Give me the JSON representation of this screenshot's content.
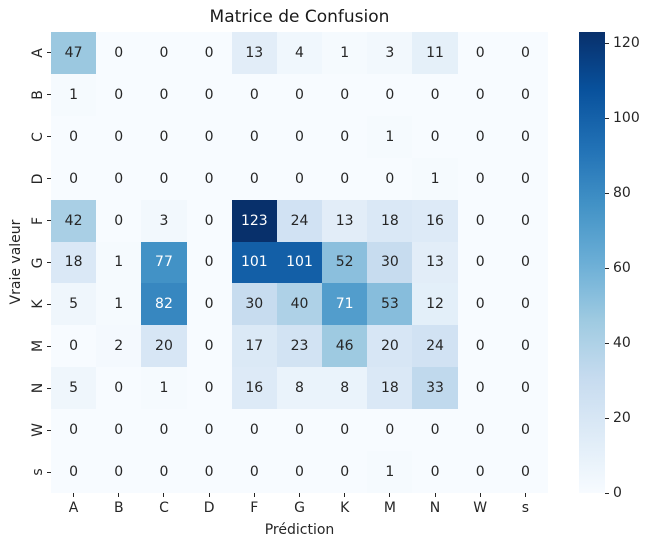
{
  "title": "Matrice de Confusion",
  "chart_data": {
    "type": "heatmap",
    "title": "Matrice de Confusion",
    "xlabel": "Prédiction",
    "ylabel": "Vraie valeur",
    "x_labels": [
      "A",
      "B",
      "C",
      "D",
      "F",
      "G",
      "K",
      "M",
      "N",
      "W",
      "s"
    ],
    "y_labels": [
      "A",
      "B",
      "C",
      "D",
      "F",
      "G",
      "K",
      "M",
      "N",
      "W",
      "s"
    ],
    "matrix": [
      [
        47,
        0,
        0,
        0,
        13,
        4,
        1,
        3,
        11,
        0,
        0
      ],
      [
        1,
        0,
        0,
        0,
        0,
        0,
        0,
        0,
        0,
        0,
        0
      ],
      [
        0,
        0,
        0,
        0,
        0,
        0,
        0,
        1,
        0,
        0,
        0
      ],
      [
        0,
        0,
        0,
        0,
        0,
        0,
        0,
        0,
        1,
        0,
        0
      ],
      [
        42,
        0,
        3,
        0,
        123,
        24,
        13,
        18,
        16,
        0,
        0
      ],
      [
        18,
        1,
        77,
        0,
        101,
        101,
        52,
        30,
        13,
        0,
        0
      ],
      [
        5,
        1,
        82,
        0,
        30,
        40,
        71,
        53,
        12,
        0,
        0
      ],
      [
        0,
        2,
        20,
        0,
        17,
        23,
        46,
        20,
        24,
        0,
        0
      ],
      [
        5,
        0,
        1,
        0,
        16,
        8,
        8,
        18,
        33,
        0,
        0
      ],
      [
        0,
        0,
        0,
        0,
        0,
        0,
        0,
        0,
        0,
        0,
        0
      ],
      [
        0,
        0,
        0,
        0,
        0,
        0,
        0,
        1,
        0,
        0,
        0
      ]
    ],
    "vmin": 0,
    "vmax": 123,
    "colormap": "Blues",
    "colorbar_ticks": [
      0,
      20,
      40,
      60,
      80,
      100,
      120
    ],
    "legend_position": "right",
    "grid": false
  },
  "colors": {
    "background": "#ffffff",
    "annotation_dark": "#262626",
    "annotation_light": "#ffffff",
    "cmap_low": "#f7fbff",
    "cmap_high": "#08306b"
  }
}
